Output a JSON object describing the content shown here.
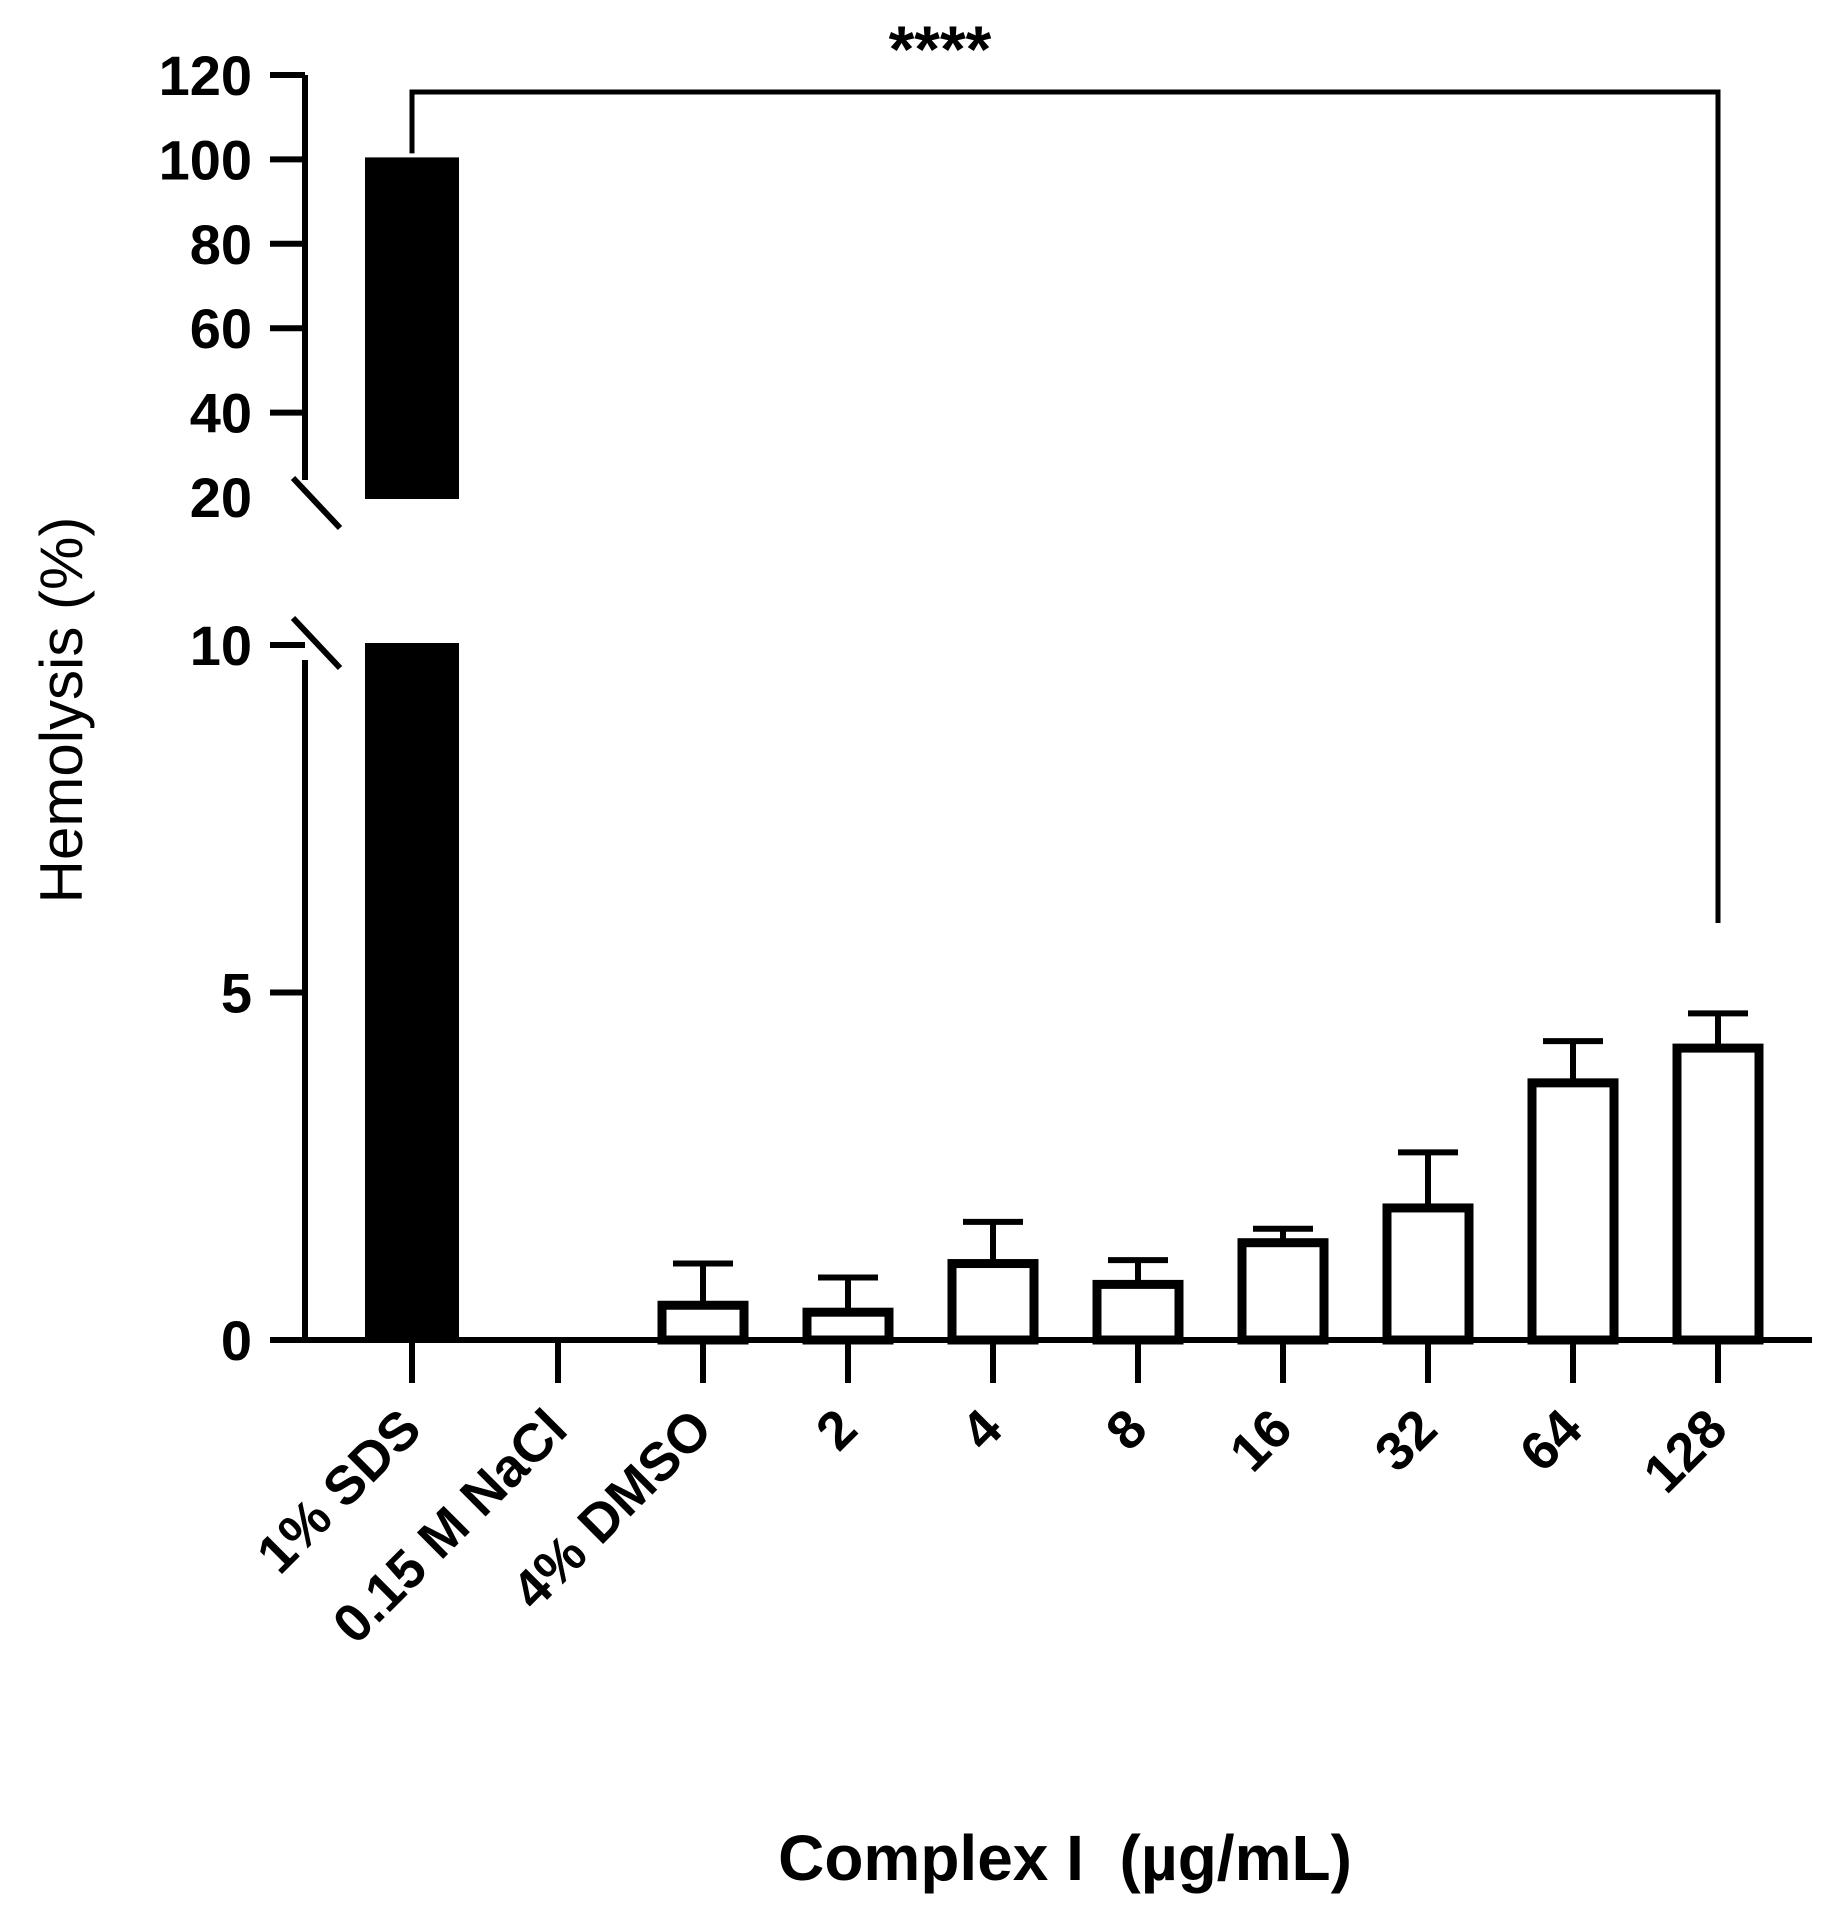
{
  "chart_data": {
    "type": "bar",
    "title": "",
    "xlabel": "Complex I  (µg/mL)",
    "ylabel": "Hemolysis (%)",
    "categories": [
      "1% SDS",
      "0.15 M NaCl",
      "4% DMSO",
      "2",
      "4",
      "8",
      "16",
      "32",
      "64",
      "128"
    ],
    "values": [
      100,
      0,
      0.5,
      0.4,
      1.1,
      0.8,
      1.4,
      1.9,
      3.7,
      4.2
    ],
    "errors": [
      0,
      0,
      0.6,
      0.5,
      0.6,
      0.35,
      0.2,
      0.8,
      0.6,
      0.5
    ],
    "bar_fill": [
      "#000000",
      "#ffffff",
      "#ffffff",
      "#ffffff",
      "#ffffff",
      "#ffffff",
      "#ffffff",
      "#ffffff",
      "#ffffff",
      "#ffffff"
    ],
    "y_axis": {
      "broken": true,
      "lower_segment": {
        "range": [
          0,
          10
        ],
        "ticks": [
          "0",
          "5",
          "10"
        ]
      },
      "upper_segment": {
        "range": [
          20,
          120
        ],
        "ticks": [
          "20",
          "40",
          "60",
          "80",
          "100",
          "120"
        ]
      }
    },
    "significance": {
      "label": "****",
      "from_category": "1% SDS",
      "to_category": "128"
    },
    "grid": false,
    "legend": "none"
  }
}
